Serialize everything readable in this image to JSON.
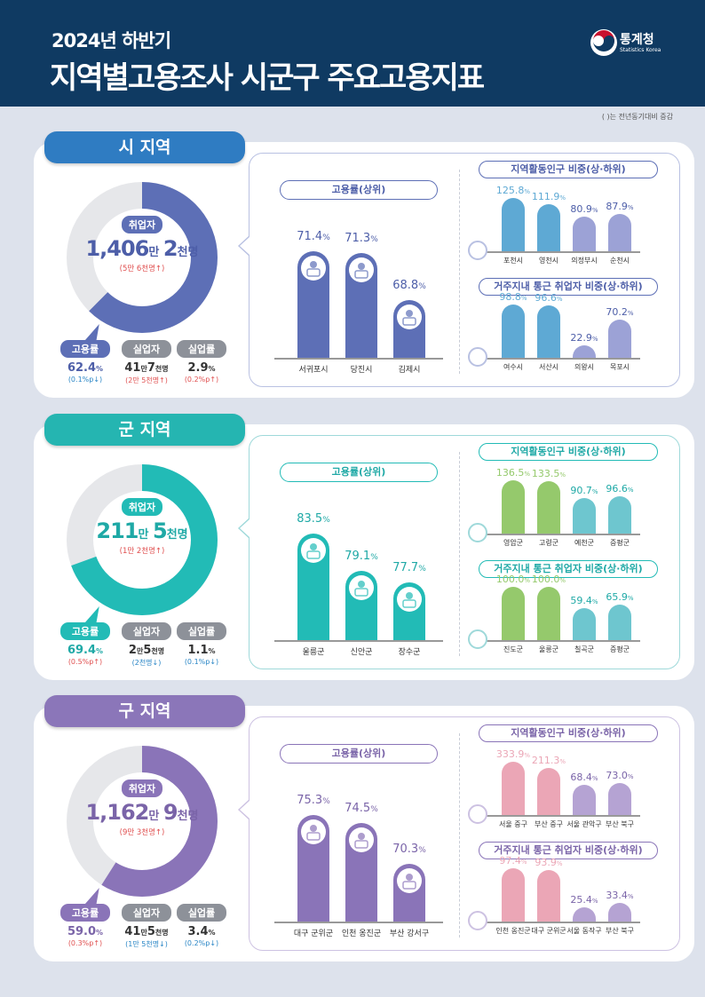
{
  "header": {
    "subtitle": "2024년 하반기",
    "title": "지역별고용조사 시군구 주요고용지표",
    "logo_text": "통계청",
    "logo_en": "Statistics Korea"
  },
  "note": "(   )는 전년동기대비 증감",
  "chart_data": [
    {
      "type": "donut",
      "section": "시 지역",
      "employed_label": "취업자",
      "employed": [
        "1,406",
        "만 ",
        "2",
        "천명"
      ],
      "employed_change": "(5만 6천명↑)",
      "employment_rate": 62.4,
      "stats": [
        {
          "label": "고용률",
          "parts": [
            "62.4",
            "%"
          ],
          "change": "(0.1%p↓)",
          "dir": "down"
        },
        {
          "label": "실업자",
          "parts": [
            "41",
            "만",
            "7",
            "천명"
          ],
          "change": "(2만 5천명↑)",
          "dir": "up"
        },
        {
          "label": "실업률",
          "parts": [
            "2.9",
            "%"
          ],
          "change": "(0.2%p↑)",
          "dir": "up"
        }
      ],
      "employment_top": {
        "title": "고용률(상위)",
        "type": "bar",
        "categories": [
          "서귀포시",
          "당진시",
          "김제시"
        ],
        "values": [
          71.4,
          71.3,
          68.8
        ],
        "unit": "%"
      },
      "econ_active": {
        "title": "지역활동인구 비중(상·하위)",
        "type": "bar",
        "categories": [
          "포천시",
          "영천시",
          "의정부시",
          "순천시"
        ],
        "values": [
          125.8,
          111.9,
          80.9,
          87.9
        ],
        "unit": "%"
      },
      "local_commute": {
        "title": "거주지내 통근 취업자 비중(상·하위)",
        "type": "bar",
        "categories": [
          "여수시",
          "서산시",
          "의왕시",
          "목포시"
        ],
        "values": [
          98.8,
          96.6,
          22.9,
          70.2
        ],
        "unit": "%"
      },
      "colors": {
        "pill": "#2f7cc2",
        "main": "#5d6fb6",
        "top": "#5ea9d4",
        "bottom": "#9ca2d6",
        "panel": "#b9c1e2",
        "text": "#4d5ea8"
      }
    },
    {
      "type": "donut",
      "section": "군 지역",
      "employed_label": "취업자",
      "employed": [
        "211",
        "만 ",
        "5",
        "천명"
      ],
      "employed_change": "(1만 2천명↑)",
      "employment_rate": 69.4,
      "stats": [
        {
          "label": "고용률",
          "parts": [
            "69.4",
            "%"
          ],
          "change": "(0.5%p↑)",
          "dir": "up"
        },
        {
          "label": "실업자",
          "parts": [
            "2",
            "만",
            "5",
            "천명"
          ],
          "change": "(2천명↓)",
          "dir": "down"
        },
        {
          "label": "실업률",
          "parts": [
            "1.1",
            "%"
          ],
          "change": "(0.1%p↓)",
          "dir": "down"
        }
      ],
      "employment_top": {
        "title": "고용률(상위)",
        "type": "bar",
        "categories": [
          "울릉군",
          "신안군",
          "장수군"
        ],
        "values": [
          83.5,
          79.1,
          77.7
        ],
        "unit": "%"
      },
      "econ_active": {
        "title": "지역활동인구 비중(상·하위)",
        "type": "bar",
        "categories": [
          "영암군",
          "고령군",
          "예천군",
          "증평군"
        ],
        "values": [
          136.5,
          133.5,
          90.7,
          96.6
        ],
        "unit": "%"
      },
      "local_commute": {
        "title": "거주지내 통근 취업자 비중(상·하위)",
        "type": "bar",
        "categories": [
          "진도군",
          "울릉군",
          "칠곡군",
          "증평군"
        ],
        "values": [
          100.0,
          100.0,
          59.4,
          65.9
        ],
        "unit": "%"
      },
      "colors": {
        "pill": "#25b5b1",
        "main": "#22bbb6",
        "top": "#95c96c",
        "bottom": "#6ec6cf",
        "panel": "#9fd9da",
        "text": "#1fa9a6"
      }
    },
    {
      "type": "donut",
      "section": "구 지역",
      "employed_label": "취업자",
      "employed": [
        "1,162",
        "만 ",
        "9",
        "천명"
      ],
      "employed_change": "(9만 3천명↑)",
      "employment_rate": 59.0,
      "stats": [
        {
          "label": "고용률",
          "parts": [
            "59.0",
            "%"
          ],
          "change": "(0.3%p↑)",
          "dir": "up"
        },
        {
          "label": "실업자",
          "parts": [
            "41",
            "만",
            "5",
            "천명"
          ],
          "change": "(1만 5천명↓)",
          "dir": "down"
        },
        {
          "label": "실업률",
          "parts": [
            "3.4",
            "%"
          ],
          "change": "(0.2%p↓)",
          "dir": "down"
        }
      ],
      "employment_top": {
        "title": "고용률(상위)",
        "type": "bar",
        "categories": [
          "대구 군위군",
          "인천 옹진군",
          "부산 강서구"
        ],
        "values": [
          75.3,
          74.5,
          70.3
        ],
        "unit": "%"
      },
      "econ_active": {
        "title": "지역활동인구 비중(상·하위)",
        "type": "bar",
        "categories": [
          "서울 중구",
          "부산 중구",
          "서울 관악구",
          "부산 북구"
        ],
        "values": [
          333.9,
          211.3,
          68.4,
          73.0
        ],
        "unit": "%",
        "axis_break": true
      },
      "local_commute": {
        "title": "거주지내 통근 취업자 비중(상·하위)",
        "type": "bar",
        "categories": [
          "인천 옹진군",
          "대구 군위군",
          "서울 동작구",
          "부산 북구"
        ],
        "values": [
          97.4,
          93.9,
          25.4,
          33.4
        ],
        "unit": "%"
      },
      "colors": {
        "pill": "#8b76b9",
        "main": "#8a74b8",
        "top": "#eba6b6",
        "bottom": "#b5a3d3",
        "panel": "#cdc2e2",
        "text": "#7a64a8"
      }
    }
  ]
}
